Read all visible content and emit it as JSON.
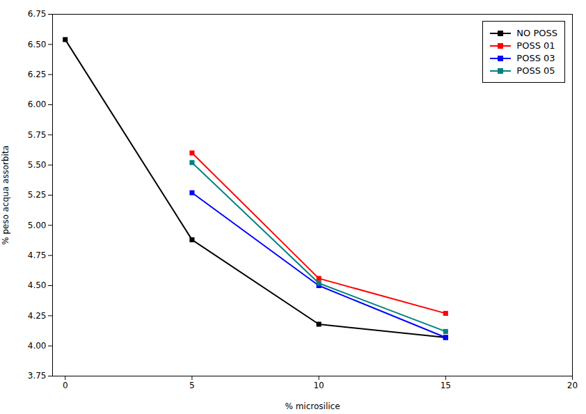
{
  "chart_data": {
    "type": "line",
    "x_label": "% microsilice",
    "y_label": "% peso acqua assorbita",
    "series": [
      {
        "name": "NO POSS",
        "color": "#000000",
        "x": [
          0,
          5,
          10,
          15
        ],
        "values": [
          6.54,
          4.88,
          4.18,
          4.07
        ]
      },
      {
        "name": "POSS 01",
        "color": "#ff0000",
        "x": [
          5,
          10,
          15
        ],
        "values": [
          5.6,
          4.56,
          4.27
        ]
      },
      {
        "name": "POSS 03",
        "color": "#0000ff",
        "x": [
          5,
          10,
          15
        ],
        "values": [
          5.27,
          4.5,
          4.07
        ]
      },
      {
        "name": "POSS 05",
        "color": "#008080",
        "x": [
          5,
          10,
          15
        ],
        "values": [
          5.52,
          4.52,
          4.12
        ]
      }
    ],
    "xlim": [
      -0.5,
      20
    ],
    "ylim": [
      3.75,
      6.75
    ],
    "xticks": [
      0,
      5,
      10,
      15,
      20
    ],
    "yticks": [
      3.75,
      {
        "value": 4,
        "label": "4.00"
      },
      4.25,
      {
        "value": 4.5,
        "label": "4.50"
      },
      4.75,
      {
        "value": 5,
        "label": "5.00"
      },
      5.25,
      {
        "value": 5.5,
        "label": "5.50"
      },
      5.75,
      {
        "value": 6,
        "label": "6.00"
      },
      6.25,
      {
        "value": 6.5,
        "label": "6.50"
      },
      6.75
    ],
    "marker": "square",
    "legend": "upper right",
    "grid": false
  }
}
